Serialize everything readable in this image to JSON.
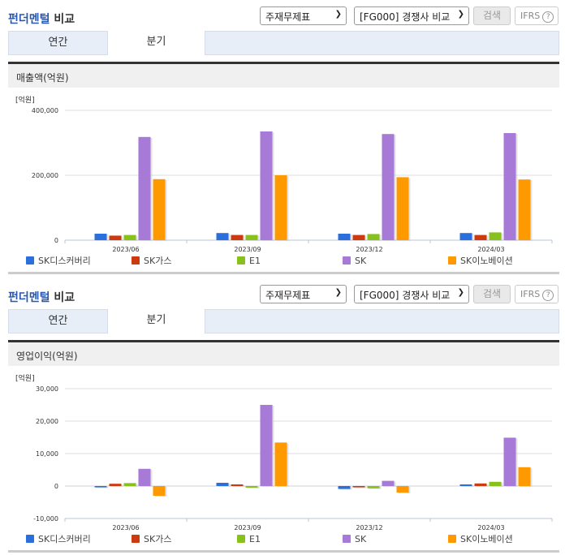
{
  "panels": [
    {
      "header": {
        "title_blue": "펀더멘털",
        "title_rest": " 비교"
      },
      "controls": {
        "statement_select": "주재무제표",
        "compare_select": "[FG000] 경쟁사 비교",
        "search_label": "검색",
        "ifrs_label": "IFRS",
        "help_glyph": "?"
      },
      "tabs": [
        {
          "label": "연간",
          "active": false
        },
        {
          "label": "분기",
          "active": true
        }
      ],
      "panel_title": "매출액(억원)"
    },
    {
      "header": {
        "title_blue": "펀더멘털",
        "title_rest": " 비교"
      },
      "controls": {
        "statement_select": "주재무제표",
        "compare_select": "[FG000] 경쟁사 비교",
        "search_label": "검색",
        "ifrs_label": "IFRS",
        "help_glyph": "?"
      },
      "tabs": [
        {
          "label": "연간",
          "active": false
        },
        {
          "label": "분기",
          "active": true
        }
      ],
      "panel_title": "영업이익(억원)"
    }
  ],
  "legend": [
    {
      "name": "SK디스커버리",
      "color": "#2a6fdb"
    },
    {
      "name": "SK가스",
      "color": "#cc3a10"
    },
    {
      "name": "E1",
      "color": "#88c11c"
    },
    {
      "name": "SK",
      "color": "#a77ad8"
    },
    {
      "name": "SK이노베이션",
      "color": "#ff9900"
    }
  ],
  "chart_data": [
    {
      "type": "bar",
      "title": "매출액(억원)",
      "unit_label": "[억원]",
      "categories": [
        "2023/06",
        "2023/09",
        "2023/12",
        "2024/03"
      ],
      "series": [
        {
          "name": "SK디스커버리",
          "values": [
            20000,
            22000,
            20000,
            22000
          ]
        },
        {
          "name": "SK가스",
          "values": [
            14000,
            16000,
            16000,
            16000
          ]
        },
        {
          "name": "E1",
          "values": [
            16000,
            16000,
            19000,
            24000
          ]
        },
        {
          "name": "SK",
          "values": [
            318000,
            335000,
            327000,
            330000
          ]
        },
        {
          "name": "SK이노베이션",
          "values": [
            188000,
            200000,
            194000,
            187000
          ]
        }
      ],
      "yticks": [
        0,
        200000,
        400000
      ],
      "ytick_labels": [
        "0",
        "200,000",
        "400,000"
      ],
      "ylim": [
        0,
        400000
      ],
      "grid": true,
      "legend_position": "bottom"
    },
    {
      "type": "bar",
      "title": "영업이익(억원)",
      "unit_label": "[억원]",
      "categories": [
        "2023/06",
        "2023/09",
        "2023/12",
        "2024/03"
      ],
      "series": [
        {
          "name": "SK디스커버리",
          "values": [
            -400,
            1000,
            -900,
            500
          ]
        },
        {
          "name": "SK가스",
          "values": [
            700,
            500,
            -400,
            800
          ]
        },
        {
          "name": "E1",
          "values": [
            900,
            -500,
            -700,
            1300
          ]
        },
        {
          "name": "SK",
          "values": [
            5300,
            25000,
            1600,
            14900
          ]
        },
        {
          "name": "SK이노베이션",
          "values": [
            -3000,
            13400,
            -2000,
            5800
          ]
        }
      ],
      "yticks": [
        -10000,
        0,
        10000,
        20000,
        30000
      ],
      "ytick_labels": [
        "-10,000",
        "0",
        "10,000",
        "20,000",
        "30,000"
      ],
      "ylim": [
        -10000,
        30000
      ],
      "grid": true,
      "legend_position": "bottom"
    }
  ]
}
